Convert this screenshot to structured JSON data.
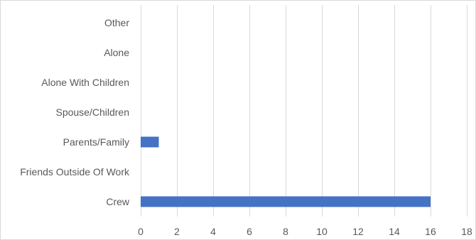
{
  "chart_data": {
    "type": "bar",
    "orientation": "horizontal",
    "categories": [
      "Other",
      "Alone",
      "Alone With Children",
      "Spouse/Children",
      "Parents/Family",
      "Friends Outside Of Work",
      "Crew"
    ],
    "values": [
      0,
      0,
      0,
      0,
      1,
      0,
      16
    ],
    "xlim": [
      0,
      18
    ],
    "xticks": [
      0,
      2,
      4,
      6,
      8,
      10,
      12,
      14,
      16,
      18
    ],
    "title": "",
    "xlabel": "",
    "ylabel": "",
    "grid": "vertical",
    "legend": "none",
    "bar_color": "#4472c4"
  }
}
